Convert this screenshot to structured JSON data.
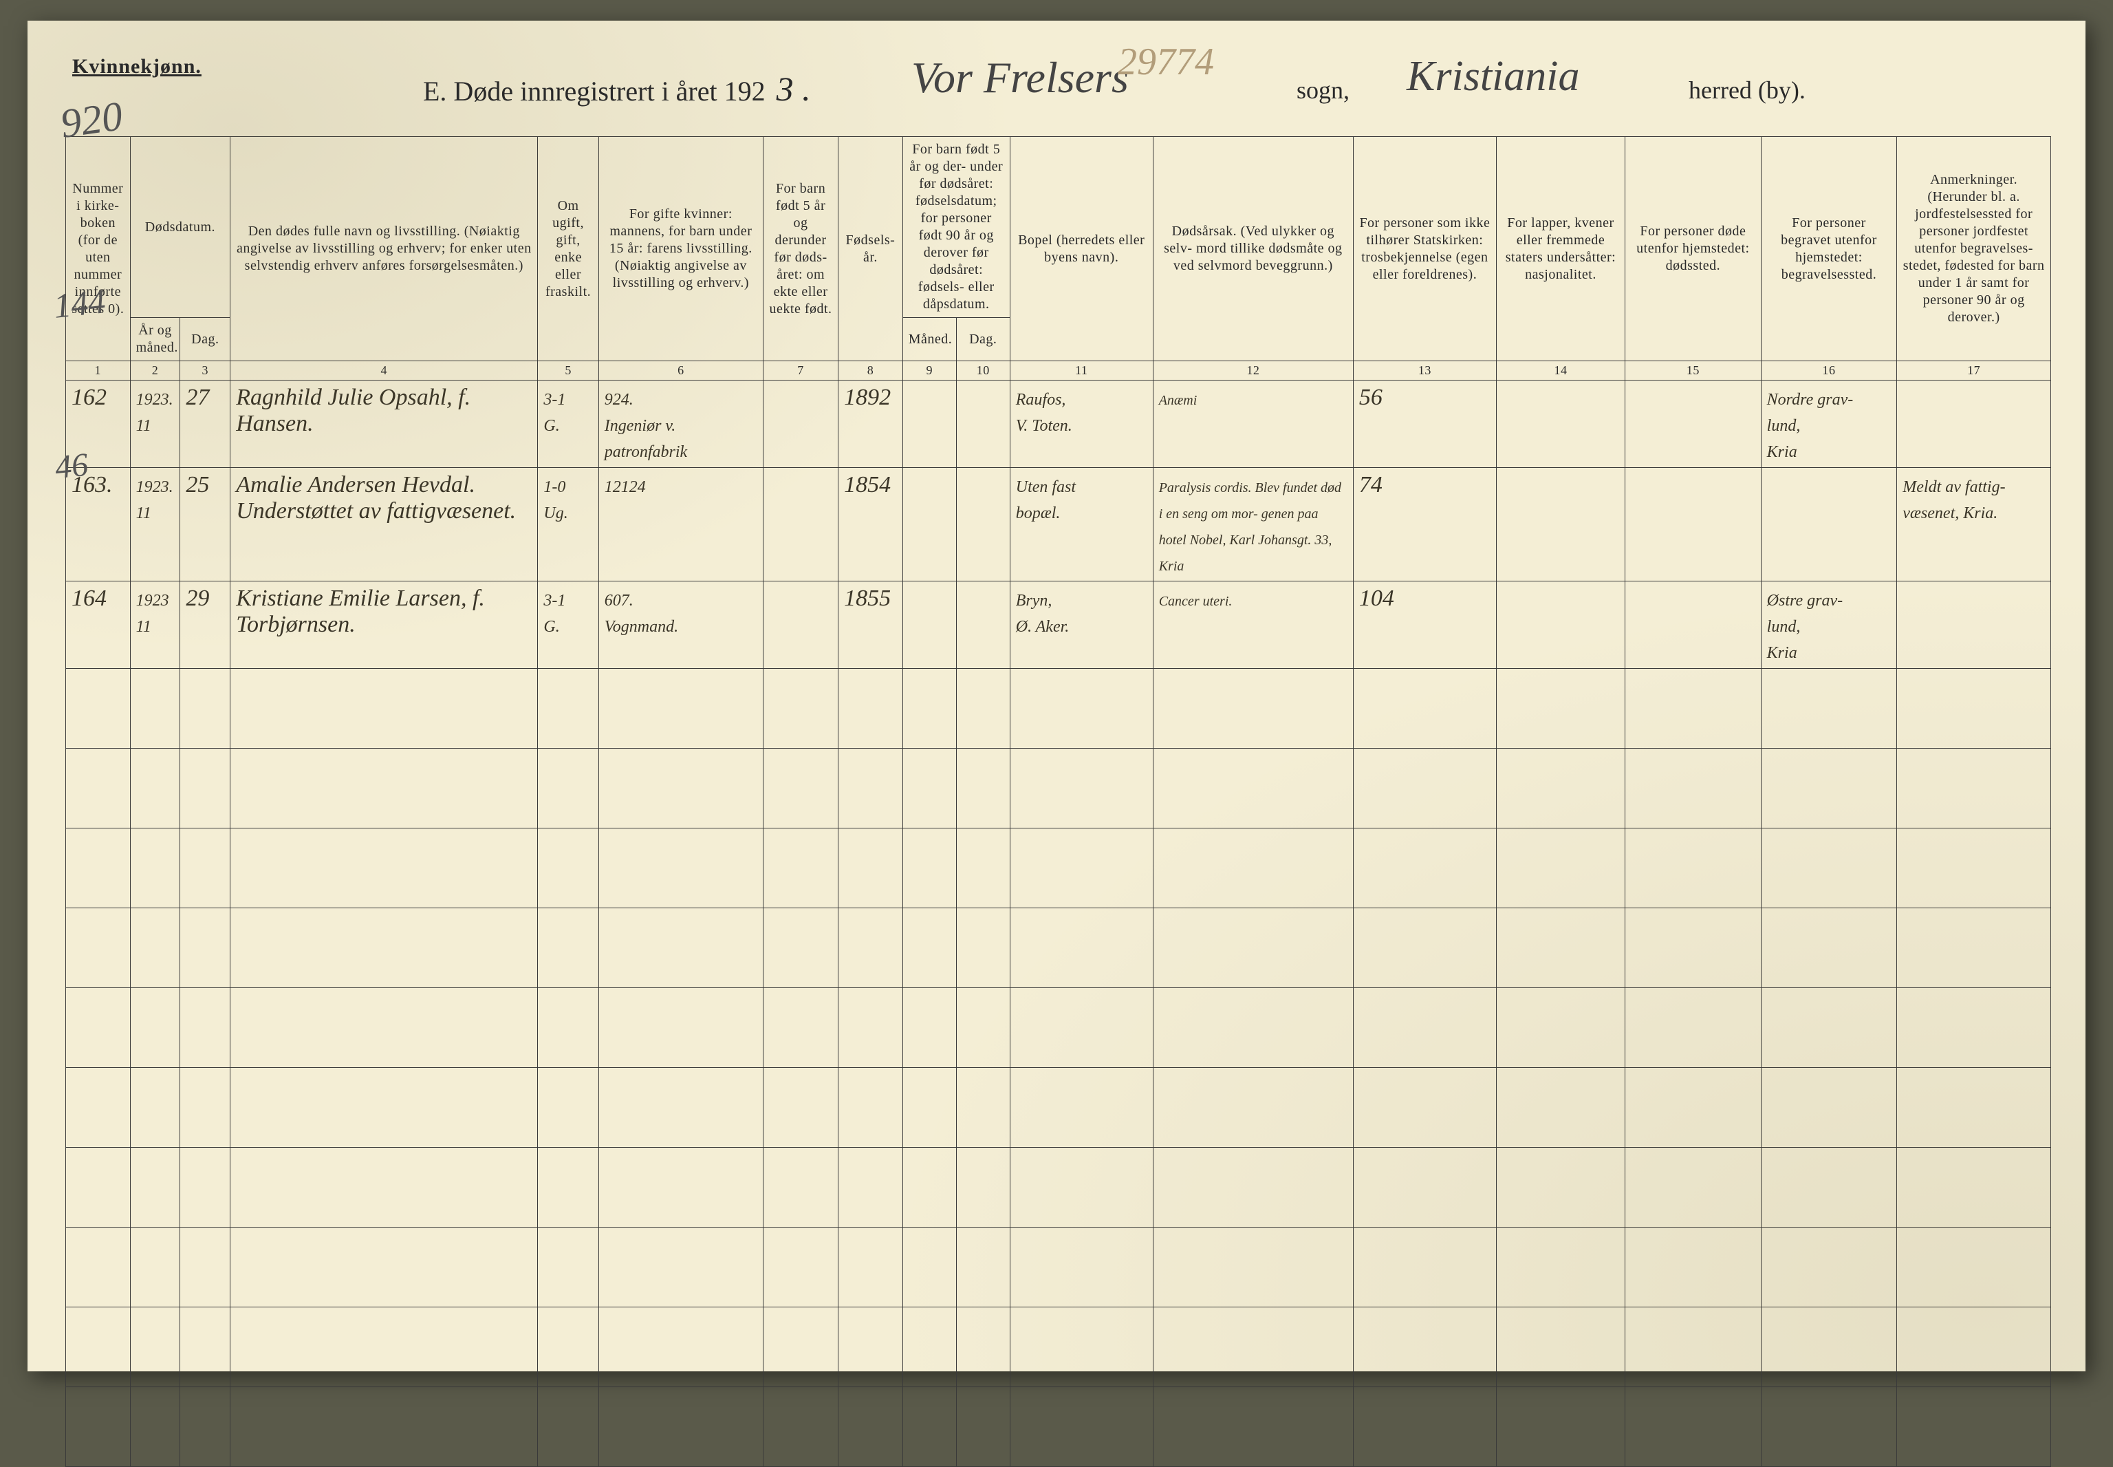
{
  "header": {
    "gender": "Kvinnekjønn.",
    "title_prefix": "E.   Døde innregistrert i året 192",
    "year_fill": "3 .",
    "sogn_script": "Vor Frelsers",
    "pencil_number": "29774",
    "sogn_label": "sogn,",
    "herred_script": "Kristiania",
    "herred_label": "herred (by)."
  },
  "margin": {
    "top_left": "920",
    "row1_side": "144",
    "row3_side": "46"
  },
  "columns": {
    "c1": "Nummer i kirke- boken (for de uten nummer innførte settes 0).",
    "c2_group": "Dødsdatum.",
    "c2": "År og måned.",
    "c3": "Dag.",
    "c4": "Den dødes fulle navn og livsstilling. (Nøiaktig angivelse av livsstilling og erhverv; for enker uten selvstendig erhverv anføres forsørgelsesmåten.)",
    "c5": "Om ugift, gift, enke eller fraskilt.",
    "c6": "For gifte kvinner: mannens, for barn under 15 år: farens livsstilling. (Nøiaktig angivelse av livsstilling og erhverv.)",
    "c7": "For barn født 5 år og derunder før døds- året: om ekte eller uekte født.",
    "c8": "Fødsels- år.",
    "c9_group": "For barn født 5 år og der- under før dødsåret: fødselsdatum; for personer født 90 år og derover før dødsåret: fødsels- eller dåpsdatum.",
    "c9": "Måned.",
    "c10": "Dag.",
    "c11": "Bopel (herredets eller byens navn).",
    "c12": "Dødsårsak. (Ved ulykker og selv- mord tillike dødsmåte og ved selvmord beveggrunn.)",
    "c13": "For personer som ikke tilhører Statskirken: trosbekjennelse (egen eller foreldrenes).",
    "c14": "For lapper, kvener eller fremmede staters undersåtter: nasjonalitet.",
    "c15": "For personer døde utenfor hjemstedet: dødssted.",
    "c16": "For personer begravet utenfor hjemstedet: begravelsessted.",
    "c17": "Anmerkninger. (Herunder bl. a. jordfestelsessted for personer jordfestet utenfor begravelses- stedet, fødested for barn under 1 år samt for personer 90 år og derover.)"
  },
  "colnums": [
    "1",
    "2",
    "3",
    "4",
    "5",
    "6",
    "7",
    "8",
    "9",
    "10",
    "11",
    "12",
    "13",
    "14",
    "15",
    "16",
    "17"
  ],
  "rows": [
    {
      "num": "162",
      "year_month": "1923.\n11",
      "day": "27",
      "name": "Ragnhild Julie Opsahl, f. Hansen.",
      "status": "3-1\nG.",
      "spouse": "924.\nIngeniør v. patronfabrik",
      "ekte": "",
      "birth_year": "1892",
      "bm": "",
      "bd": "",
      "bopel": "Raufos,\nV. Toten.",
      "cause": "Anæmi",
      "faith": "56",
      "nationality": "",
      "death_place": "",
      "burial_place": "Nordre grav-\nlund,\nKria",
      "remarks": ""
    },
    {
      "num": "163.",
      "year_month": "1923.\n11",
      "day": "25",
      "name": "Amalie Andersen Hevdal. Understøttet av fattigvæsenet.",
      "status": "1-0\nUg.",
      "spouse": "12124",
      "ekte": "",
      "birth_year": "1854",
      "bm": "",
      "bd": "",
      "bopel": "Uten fast\nbopæl.",
      "cause": "Paralysis cordis. Blev fundet død i en seng om mor- genen paa hotel Nobel, Karl Johansgt. 33, Kria",
      "faith": "74",
      "nationality": "",
      "death_place": "",
      "burial_place": "",
      "remarks": "Meldt av fattig- væsenet, Kria."
    },
    {
      "num": "164",
      "year_month": "1923\n11",
      "day": "29",
      "name": "Kristiane Emilie Larsen, f. Torbjørnsen.",
      "status": "3-1\nG.",
      "spouse": "607.\nVognmand.",
      "ekte": "",
      "birth_year": "1855",
      "bm": "",
      "bd": "",
      "bopel": "Bryn,\nØ. Aker.",
      "cause": "Cancer uteri.",
      "faith": "104",
      "nationality": "",
      "death_place": "",
      "burial_place": "Østre grav-\nlund,\nKria",
      "remarks": ""
    }
  ],
  "empty_row_count": 10
}
